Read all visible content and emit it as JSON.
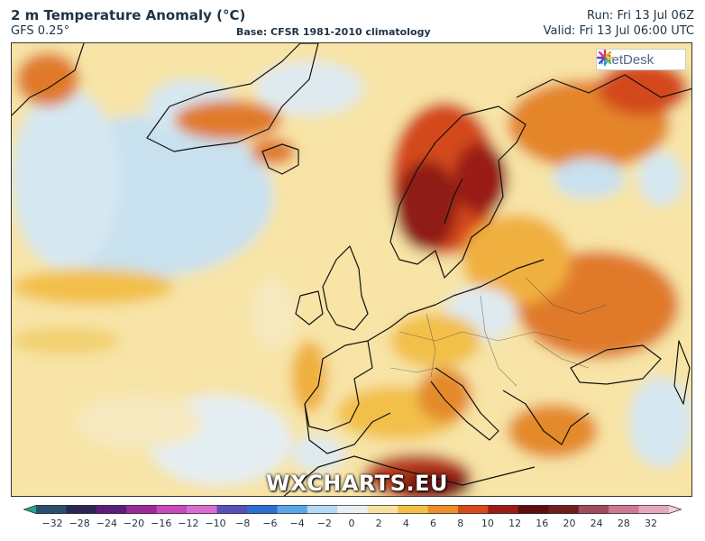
{
  "header": {
    "title": "2 m Temperature Anomaly (°C)",
    "model": "GFS 0.25°",
    "base": "Base: CFSR 1981-2010 climatology",
    "run": "Run: Fri 13 Jul 06Z",
    "valid": "Valid: Fri 13 Jul 06:00 UTC"
  },
  "logo": {
    "text": "MetDesk",
    "icon": "metdesk-logo-icon"
  },
  "watermark": "WXCHARTS.EU",
  "colorbar": {
    "ticks": [
      "−32",
      "−28",
      "−24",
      "−20",
      "−16",
      "−12",
      "−10",
      "−8",
      "−6",
      "−4",
      "−2",
      "0",
      "2",
      "4",
      "6",
      "8",
      "10",
      "12",
      "16",
      "20",
      "24",
      "28",
      "32"
    ],
    "colors": [
      "#1fa890",
      "#2a4e6e",
      "#2b2554",
      "#5c1c7a",
      "#9a2a9a",
      "#c84ab8",
      "#d86cd0",
      "#5a4fb8",
      "#2d6fd0",
      "#5aa6e8",
      "#b3d9f0",
      "#e8eef2",
      "#f6e2a0",
      "#f2c048",
      "#ec8f2a",
      "#d44a1c",
      "#9a1c14",
      "#5c0e10",
      "#6b1f1f",
      "#a04a5a",
      "#cc7a92",
      "#e6a8c0",
      "#f4d0e0"
    ]
  },
  "colors": {
    "frame_bg": "#f7e4a6",
    "cold": "#c9e1ef",
    "cool": "#e4eef2",
    "warm": "#f2c048",
    "hot": "#e07a2a",
    "very_hot": "#b83a1c",
    "extreme": "#7a1414",
    "land_outline": "#111111"
  }
}
